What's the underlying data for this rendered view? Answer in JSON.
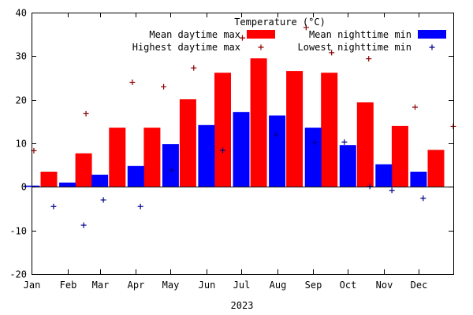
{
  "chart_data": {
    "type": "bar",
    "title": "Temperature (°C)",
    "xlabel": "2023",
    "ylabel": "",
    "ylim": [
      -20,
      40
    ],
    "yticks": [
      -20,
      -10,
      0,
      10,
      20,
      30,
      40
    ],
    "xlim": [
      "2023-01-01",
      "2023-12-31"
    ],
    "xtick_labels": [
      "Jan",
      "Feb",
      "Mar",
      "Apr",
      "May",
      "Jun",
      "Jul",
      "Aug",
      "Sep",
      "Oct",
      "Nov",
      "Dec"
    ],
    "xtick_dates": [
      "2023-01-01",
      "2023-02-01",
      "2023-03-01",
      "2023-04-01",
      "2023-05-01",
      "2023-06-01",
      "2023-07-01",
      "2023-08-01",
      "2023-09-01",
      "2023-10-01",
      "2023-11-01",
      "2023-12-01"
    ],
    "grid": false,
    "legend_position": "top-right",
    "series": [
      {
        "name": "Mean daytime max",
        "kind": "bar",
        "color": "#ff0000",
        "x": [
          "2023-01-16",
          "2023-02-15",
          "2023-03-16",
          "2023-04-15",
          "2023-05-16",
          "2023-06-15",
          "2023-07-16",
          "2023-08-16",
          "2023-09-15",
          "2023-10-16",
          "2023-11-15",
          "2023-12-16"
        ],
        "values": [
          3.5,
          7.7,
          13.6,
          13.6,
          20.1,
          26.2,
          29.5,
          26.6,
          26.2,
          19.4,
          14.0,
          8.5
        ]
      },
      {
        "name": "Mean nighttime min",
        "kind": "bar",
        "color": "#0000ff",
        "x": [
          "2023-01-01",
          "2023-02-01",
          "2023-03-01",
          "2023-04-01",
          "2023-05-01",
          "2023-06-01",
          "2023-07-01",
          "2023-08-01",
          "2023-09-01",
          "2023-10-01",
          "2023-11-01",
          "2023-12-01"
        ],
        "values": [
          0.3,
          1.0,
          2.8,
          4.8,
          9.8,
          14.2,
          17.2,
          16.4,
          13.6,
          9.6,
          5.2,
          3.5
        ]
      },
      {
        "name": "Highest daytime max",
        "kind": "point",
        "marker": "+",
        "color": "#8b0000",
        "x": [
          "2023-01-03",
          "2023-02-17",
          "2023-03-29",
          "2023-04-25",
          "2023-05-21",
          "2023-07-02",
          "2023-08-26",
          "2023-09-17",
          "2023-10-19",
          "2023-11-28",
          "2023-12-31"
        ],
        "values": [
          8.3,
          16.8,
          24.0,
          23.0,
          27.3,
          34.2,
          36.6,
          30.8,
          29.4,
          18.3,
          13.9
        ]
      },
      {
        "name": "Lowest nighttime min",
        "kind": "point",
        "marker": "+",
        "color": "#00008b",
        "x": [
          "2023-01-20",
          "2023-02-15",
          "2023-03-04",
          "2023-04-05",
          "2023-05-02",
          "2023-06-15",
          "2023-07-31",
          "2023-09-02",
          "2023-09-28",
          "2023-10-20",
          "2023-11-08",
          "2023-12-05"
        ],
        "values": [
          -4.5,
          -8.8,
          -3.0,
          -4.5,
          3.8,
          8.4,
          12.0,
          10.2,
          10.3,
          0.1,
          -0.8,
          -2.6
        ]
      }
    ]
  }
}
